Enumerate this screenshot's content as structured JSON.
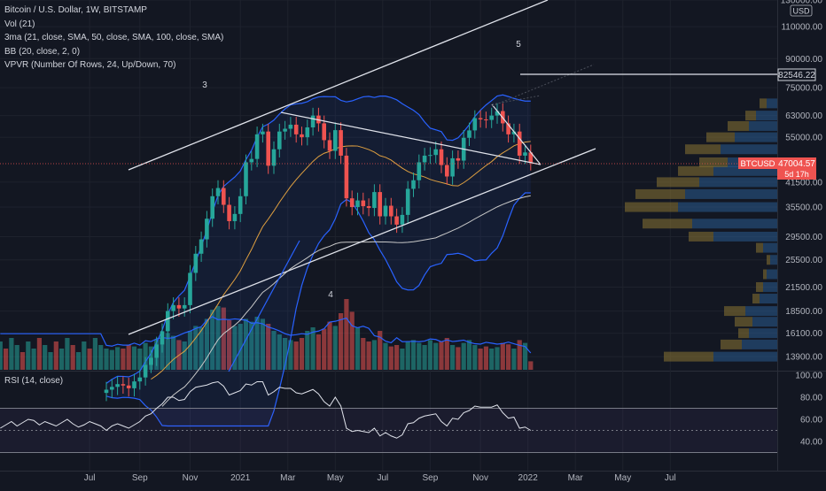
{
  "legend": {
    "symbol": "Bitcoin / U.S. Dollar, 1W, BITSTAMP",
    "vol": "Vol (21)",
    "ma": "3ma (21, close, SMA, 50, close, SMA, 100, close, SMA)",
    "bb": "BB (20, close, 2, 0)",
    "vpvr": "VPVR (Number Of Rows, 24, Up/Down, 70)",
    "rsi": "RSI (14, close)"
  },
  "colors": {
    "up": "#26a69a",
    "down": "#ef5350",
    "bb": "#2962ff",
    "ma21": "#e0a040",
    "ma100": "#c8c8c8",
    "vp_up": "#2a5b8f",
    "vp_down": "#8a7433"
  },
  "chart_data": [
    {
      "type": "candlestick",
      "title": "Bitcoin / U.S. Dollar, 1W, BITSTAMP",
      "scale": "log",
      "ylim": [
        12800,
        130000
      ],
      "y_ticks": [
        "130000.00",
        "110000.00",
        "90000.00",
        "75000.00",
        "63000.00",
        "55000.00",
        "41500.00",
        "35500.00",
        "29500.00",
        "25500.00",
        "21500.00",
        "18500.00",
        "16100.00",
        "13900.00"
      ],
      "x_ticks": [
        "Jul",
        "Sep",
        "Nov",
        "2021",
        "Mar",
        "May",
        "Jul",
        "Sep",
        "Nov",
        "2022",
        "Mar",
        "May",
        "Jul"
      ],
      "usd_label": "USD",
      "price_labels": {
        "level": "82546.22",
        "last_symbol": "BTCUSD",
        "last_price": "47004.57",
        "countdown": "5d 17h"
      },
      "annotations": [
        "3",
        "4",
        "5"
      ],
      "closes": [
        11300,
        11500,
        11700,
        11600,
        11400,
        11900,
        12200,
        13200,
        13800,
        15000,
        16300,
        18500,
        19200,
        18800,
        19200,
        23500,
        26500,
        29000,
        33000,
        38000,
        40000,
        36000,
        32500,
        34000,
        38000,
        47000,
        48000,
        56000,
        57000,
        46000,
        51000,
        57000,
        58000,
        59500,
        56000,
        55000,
        58500,
        63000,
        60000,
        54000,
        50500,
        57500,
        49000,
        37500,
        35500,
        37000,
        35700,
        35300,
        39000,
        33500,
        35800,
        33500,
        31800,
        33800,
        39800,
        42000,
        47000,
        49000,
        49200,
        51000,
        46200,
        43000,
        48200,
        47500,
        54800,
        57400,
        62000,
        61500,
        61300,
        63000,
        64800,
        60000,
        56000,
        57000,
        49000,
        50000,
        47005
      ],
      "volumes": [
        0.3,
        0.28,
        0.32,
        0.3,
        0.35,
        0.33,
        0.3,
        0.38,
        0.33,
        0.42,
        0.45,
        0.52,
        0.48,
        0.42,
        0.4,
        0.55,
        0.62,
        0.6,
        0.72,
        0.85,
        0.9,
        0.88,
        0.7,
        0.62,
        0.65,
        0.72,
        0.68,
        0.75,
        0.72,
        0.65,
        0.55,
        0.5,
        0.45,
        0.42,
        0.4,
        0.45,
        0.55,
        0.6,
        0.5,
        0.58,
        0.68,
        0.62,
        0.8,
        1.0,
        0.82,
        0.6,
        0.45,
        0.4,
        0.42,
        0.55,
        0.38,
        0.33,
        0.35,
        0.3,
        0.4,
        0.42,
        0.38,
        0.35,
        0.42,
        0.38,
        0.4,
        0.45,
        0.35,
        0.32,
        0.38,
        0.42,
        0.35,
        0.3,
        0.33,
        0.3,
        0.32,
        0.38,
        0.36,
        0.3,
        0.42,
        0.38,
        0.12
      ]
    },
    {
      "type": "line",
      "title": "RSI (14, close)",
      "ylim": [
        20,
        100
      ],
      "y_ticks": [
        "100.00",
        "80.00",
        "60.00",
        "40.00"
      ],
      "bands": [
        70,
        50,
        30
      ],
      "values": [
        50,
        54,
        56,
        54,
        52,
        55,
        58,
        63,
        65,
        70,
        74,
        80,
        80,
        77,
        78,
        85,
        89,
        90,
        91,
        93,
        94,
        90,
        82,
        84,
        86,
        92,
        91,
        94,
        94,
        82,
        85,
        89,
        88,
        88,
        84,
        83,
        85,
        87,
        83,
        76,
        72,
        80,
        72,
        52,
        49,
        50,
        49,
        48,
        52,
        45,
        48,
        45,
        43,
        46,
        56,
        57,
        61,
        63,
        64,
        65,
        58,
        54,
        61,
        60,
        66,
        68,
        72,
        71,
        71,
        71,
        73,
        66,
        61,
        62,
        52,
        53,
        50
      ]
    }
  ]
}
